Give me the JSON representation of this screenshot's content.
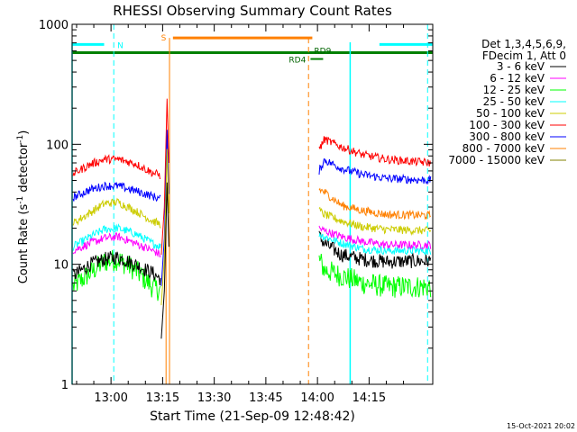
{
  "chart_data": {
    "type": "line",
    "title": "RHESSI Observing Summary Count Rates",
    "xlabel": "Start Time (21-Sep-09 12:48:42)",
    "ylabel_main": "Count Rate (s",
    "ylabel_sup1": "-1",
    "ylabel_mid": " detector",
    "ylabel_sup2": "-1",
    "ylabel_end": ")",
    "yscale": "log",
    "ylim": [
      1,
      1000
    ],
    "xlim_minutes": [
      48.7,
      153.5
    ],
    "x_unit": "minutes after 12:00 UT",
    "x_ticks": [
      {
        "value": 60,
        "label": "13:00"
      },
      {
        "value": 75,
        "label": "13:15"
      },
      {
        "value": 90,
        "label": "13:30"
      },
      {
        "value": 105,
        "label": "13:45"
      },
      {
        "value": 120,
        "label": "14:00"
      },
      {
        "value": 135,
        "label": "14:15"
      }
    ],
    "y_ticks": [
      {
        "value": 1,
        "label": "1"
      },
      {
        "value": 10,
        "label": "10"
      },
      {
        "value": 100,
        "label": "100"
      },
      {
        "value": 1000,
        "label": "1000"
      }
    ],
    "legend_header_1": "Det 1,3,4,5,6,9,",
    "legend_header_2": "FDecim 1, Att 0",
    "legend_position": "right",
    "footer_date": "15-Oct-2021 20:02",
    "series": [
      {
        "name": "3 - 6 keV",
        "color": "#000000",
        "before": [
          [
            49,
            8
          ],
          [
            54,
            10
          ],
          [
            58,
            11
          ],
          [
            62,
            11.5
          ],
          [
            67,
            10
          ],
          [
            72,
            8.5
          ],
          [
            74.5,
            7.5
          ]
        ],
        "after": [
          [
            120.5,
            17
          ],
          [
            122,
            15
          ],
          [
            127,
            12
          ],
          [
            133,
            11
          ],
          [
            140,
            10.5
          ],
          [
            153,
            10.7
          ]
        ]
      },
      {
        "name": "6 - 12 keV",
        "color": "#ff00ff",
        "before": [
          [
            49,
            13
          ],
          [
            54,
            15
          ],
          [
            58,
            16.5
          ],
          [
            62,
            17
          ],
          [
            67,
            15
          ],
          [
            72,
            13
          ],
          [
            74.5,
            12
          ]
        ],
        "after": [
          [
            120.5,
            20
          ],
          [
            122,
            19
          ],
          [
            127,
            17
          ],
          [
            133,
            15.5
          ],
          [
            140,
            14.5
          ],
          [
            153,
            14.5
          ]
        ]
      },
      {
        "name": "12 - 25 keV",
        "color": "#00ff00",
        "before": [
          [
            49,
            6.5
          ],
          [
            54,
            8.5
          ],
          [
            58,
            10.5
          ],
          [
            62,
            11
          ],
          [
            67,
            9
          ],
          [
            72,
            6.5
          ],
          [
            74.5,
            6
          ]
        ],
        "after": [
          [
            120.5,
            11
          ],
          [
            122,
            9
          ],
          [
            127,
            8
          ],
          [
            133,
            7
          ],
          [
            140,
            6.5
          ],
          [
            153,
            6.5
          ]
        ]
      },
      {
        "name": "25 - 50 keV",
        "color": "#00ffff",
        "before": [
          [
            49,
            14
          ],
          [
            54,
            17
          ],
          [
            58,
            19.5
          ],
          [
            62,
            20
          ],
          [
            67,
            18
          ],
          [
            72,
            15
          ],
          [
            74.5,
            14
          ]
        ],
        "after": [
          [
            120.5,
            18
          ],
          [
            122,
            17
          ],
          [
            127,
            15
          ],
          [
            133,
            13.5
          ],
          [
            140,
            13
          ],
          [
            153,
            13
          ]
        ]
      },
      {
        "name": "50 - 100 keV",
        "color": "#cccc00",
        "before": [
          [
            49,
            22
          ],
          [
            54,
            27
          ],
          [
            58,
            32
          ],
          [
            62,
            33
          ],
          [
            67,
            28
          ],
          [
            72,
            23
          ],
          [
            74.5,
            21.5
          ]
        ],
        "after": [
          [
            120.5,
            28
          ],
          [
            122,
            26
          ],
          [
            127,
            23
          ],
          [
            133,
            20.5
          ],
          [
            140,
            19.5
          ],
          [
            153,
            19
          ]
        ]
      },
      {
        "name": "100 - 300 keV",
        "color": "#ff0000",
        "before": [
          [
            49,
            57
          ],
          [
            54,
            68
          ],
          [
            58,
            75
          ],
          [
            62,
            75
          ],
          [
            67,
            69
          ],
          [
            72,
            58
          ],
          [
            74.5,
            55
          ]
        ],
        "after": [
          [
            120.5,
            90
          ],
          [
            122,
            110
          ],
          [
            127,
            95
          ],
          [
            133,
            82
          ],
          [
            140,
            75
          ],
          [
            153,
            70
          ]
        ]
      },
      {
        "name": "300 - 800 keV",
        "color": "#0000ff",
        "before": [
          [
            49,
            36
          ],
          [
            54,
            42
          ],
          [
            58,
            45
          ],
          [
            62,
            45
          ],
          [
            67,
            41
          ],
          [
            72,
            37
          ],
          [
            74.5,
            35
          ]
        ],
        "after": [
          [
            120.5,
            60
          ],
          [
            122,
            74
          ],
          [
            127,
            63
          ],
          [
            133,
            56
          ],
          [
            140,
            52
          ],
          [
            153,
            50
          ]
        ]
      },
      {
        "name": "800 - 7000 keV",
        "color": "#ff8000",
        "before": [],
        "after": [
          [
            120.5,
            42
          ],
          [
            122,
            40
          ],
          [
            127,
            31
          ],
          [
            133,
            28
          ],
          [
            140,
            26
          ],
          [
            153,
            25.5
          ]
        ]
      },
      {
        "name": "7000 - 15000 keV",
        "color": "#808000",
        "before": [],
        "after": []
      }
    ],
    "flare_spike": {
      "x": [
        74.6,
        75.5,
        76.3,
        76.8
      ],
      "y": [
        12,
        30,
        240,
        70
      ]
    },
    "markers": {
      "n_label": "N",
      "s_label": "S",
      "rd4_label": "RD4",
      "rd9_label": "RD9",
      "n_bar": [
        [
          48.7,
          58
        ],
        [
          138,
          153.5
        ]
      ],
      "s_bar": [
        [
          78,
          118.5
        ]
      ],
      "s_start": 77.7,
      "rd_x": 118.5,
      "green_level": 580,
      "cyan_level": 680,
      "orange_level": 770,
      "cyan_dashed_x": [
        60.8,
        152.0
      ],
      "cyan_solid_x": [
        48.7,
        129.5
      ],
      "orange_dashed_x": 117.4,
      "orange_solid_x": [
        76.0,
        77.0
      ]
    }
  }
}
